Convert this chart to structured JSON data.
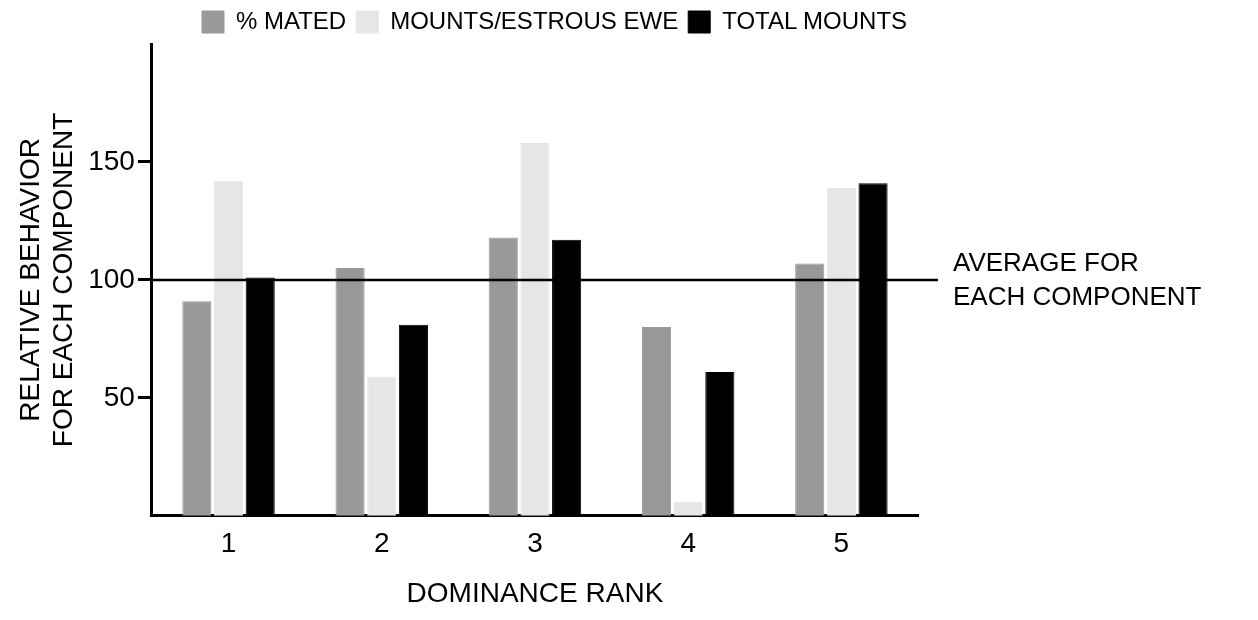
{
  "chart_data": {
    "type": "bar",
    "categories": [
      "1",
      "2",
      "3",
      "4",
      "5"
    ],
    "xlabel": "DOMINANCE RANK",
    "ylabel": "RELATIVE BEHAVIOR\nFOR EACH COMPONENT",
    "series": [
      {
        "name": "% MATED",
        "color": "#999999",
        "values": [
          91,
          105,
          118,
          80,
          107
        ]
      },
      {
        "name": "MOUNTS/ESTROUS EWE",
        "color": "#e6e6e6",
        "values": [
          142,
          59,
          158,
          6,
          139
        ]
      },
      {
        "name": "TOTAL MOUNTS",
        "color": "#000000",
        "values": [
          101,
          81,
          117,
          61,
          141
        ]
      }
    ],
    "ylim": [
      0,
      200
    ],
    "yticks": [
      50,
      100,
      150
    ],
    "ref_lines": [
      {
        "axis": "y",
        "value": 100,
        "label": "AVERAGE FOR\nEACH COMPONENT",
        "color": "#000000"
      }
    ],
    "grid": false,
    "legend": "top right"
  }
}
